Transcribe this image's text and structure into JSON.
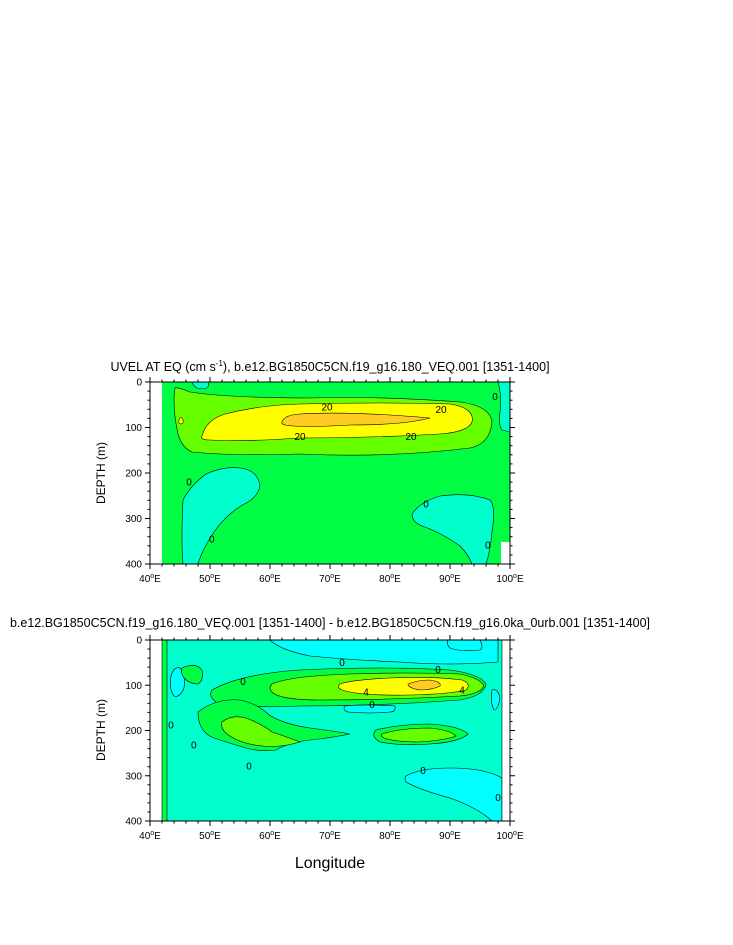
{
  "colors": {
    "cyan": "#00ffff",
    "aquamarine": "#00ffcc",
    "green": "#00ff44",
    "lime": "#66ff00",
    "yellow": "#ffff00",
    "orange": "#ffcc22",
    "contour": "#000000",
    "background": "#ffffff"
  },
  "chart_data": [
    {
      "type": "contour",
      "title_main": "UVEL AT EQ (cm s",
      "title_sup": "-1",
      "title_rest": "), b.e12.BG1850C5CN.f19_g16.180_VEQ.001 [1351-1400]",
      "ylabel": "DEPTH (m)",
      "xlabel": "",
      "xlim": [
        40,
        100
      ],
      "ylim": [
        400,
        0
      ],
      "data_xlim": [
        42,
        99
      ],
      "x_ticks": [
        {
          "num": "40",
          "deg": "o",
          "dir": "E",
          "value": 40
        },
        {
          "num": "50",
          "deg": "o",
          "dir": "E",
          "value": 50
        },
        {
          "num": "60",
          "deg": "o",
          "dir": "E",
          "value": 60
        },
        {
          "num": "70",
          "deg": "o",
          "dir": "E",
          "value": 70
        },
        {
          "num": "80",
          "deg": "o",
          "dir": "E",
          "value": 80
        },
        {
          "num": "90",
          "deg": "o",
          "dir": "E",
          "value": 90
        },
        {
          "num": "100",
          "deg": "o",
          "dir": "E",
          "value": 100
        }
      ],
      "y_ticks": [
        "0",
        "100",
        "200",
        "300",
        "400"
      ],
      "y_tick_values": [
        0,
        100,
        200,
        300,
        400
      ],
      "contour_labels": [
        {
          "text": "20",
          "lon": 69.5,
          "depth": 55
        },
        {
          "text": "20",
          "lon": 88.5,
          "depth": 60
        },
        {
          "text": "20",
          "lon": 65,
          "depth": 120
        },
        {
          "text": "20",
          "lon": 83.5,
          "depth": 120
        },
        {
          "text": "0",
          "lon": 46.5,
          "depth": 220
        },
        {
          "text": "0",
          "lon": 50.3,
          "depth": 345
        },
        {
          "text": "0",
          "lon": 86,
          "depth": 268
        },
        {
          "text": "0",
          "lon": 96.3,
          "depth": 358
        },
        {
          "text": "0",
          "lon": 97.5,
          "depth": 32
        }
      ]
    },
    {
      "type": "contour",
      "title": "b.e12.BG1850C5CN.f19_g16.180_VEQ.001 [1351-1400] - b.e12.BG1850C5CN.f19_g16.0ka_0urb.001 [1351-1400]",
      "ylabel": "DEPTH (m)",
      "xlabel": "Longitude",
      "xlim": [
        40,
        100
      ],
      "ylim": [
        400,
        0
      ],
      "data_xlim": [
        42,
        98
      ],
      "x_ticks": [
        {
          "num": "40",
          "deg": "o",
          "dir": "E",
          "value": 40
        },
        {
          "num": "50",
          "deg": "o",
          "dir": "E",
          "value": 50
        },
        {
          "num": "60",
          "deg": "o",
          "dir": "E",
          "value": 60
        },
        {
          "num": "70",
          "deg": "o",
          "dir": "E",
          "value": 70
        },
        {
          "num": "80",
          "deg": "o",
          "dir": "E",
          "value": 80
        },
        {
          "num": "90",
          "deg": "o",
          "dir": "E",
          "value": 90
        },
        {
          "num": "100",
          "deg": "o",
          "dir": "E",
          "value": 100
        }
      ],
      "y_ticks": [
        "0",
        "100",
        "200",
        "300",
        "400"
      ],
      "y_tick_values": [
        0,
        100,
        200,
        300,
        400
      ],
      "contour_labels": [
        {
          "text": "0",
          "lon": 72,
          "depth": 50
        },
        {
          "text": "0",
          "lon": 88,
          "depth": 65
        },
        {
          "text": "0",
          "lon": 55.5,
          "depth": 92
        },
        {
          "text": "4",
          "lon": 76,
          "depth": 115
        },
        {
          "text": "4",
          "lon": 92,
          "depth": 110
        },
        {
          "text": "0",
          "lon": 77,
          "depth": 142
        },
        {
          "text": "0",
          "lon": 43.5,
          "depth": 188
        },
        {
          "text": "0",
          "lon": 47.3,
          "depth": 232
        },
        {
          "text": "0",
          "lon": 56.5,
          "depth": 278
        },
        {
          "text": "0",
          "lon": 85.5,
          "depth": 288
        },
        {
          "text": "0",
          "lon": 98,
          "depth": 348
        }
      ]
    }
  ]
}
